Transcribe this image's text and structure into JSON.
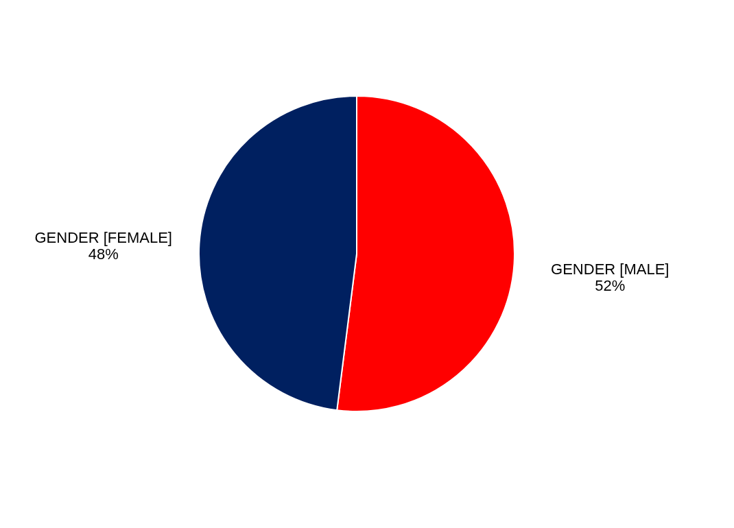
{
  "chart_data": {
    "type": "pie",
    "categories": [
      "GENDER [MALE]",
      "GENDER [FEMALE]"
    ],
    "values": [
      52,
      48
    ],
    "colors": [
      "#ff0000",
      "#002060"
    ],
    "value_labels": [
      "52%",
      "48%"
    ],
    "legend": false
  }
}
